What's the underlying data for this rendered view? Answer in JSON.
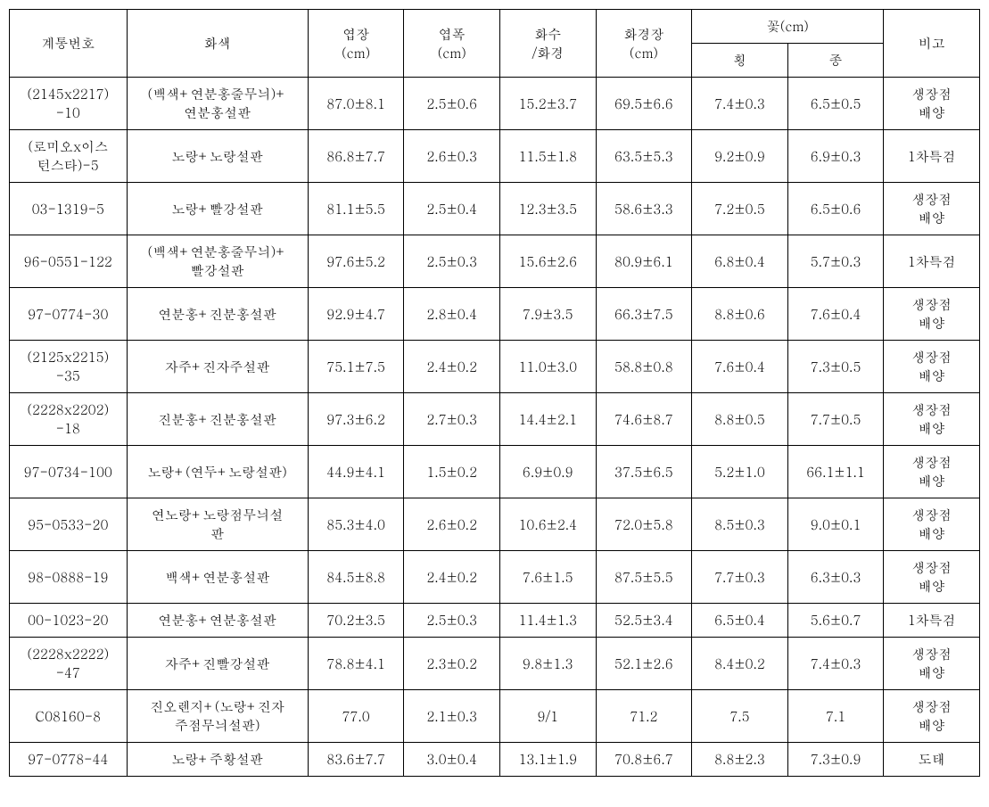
{
  "table": {
    "header": {
      "col1": "계통번호",
      "col2": "화색",
      "col3_line1": "엽장",
      "col3_line2": "(cm)",
      "col4_line1": "엽폭",
      "col4_line2": "(cm)",
      "col5_line1": "화수",
      "col5_line2": "/화경",
      "col6_line1": "화경장",
      "col6_line2": "(cm)",
      "col7": "꽃(cm)",
      "col7a": "횡",
      "col7b": "종",
      "col8": "비고"
    },
    "rows": [
      {
        "id_line1": "(2145x2217)",
        "id_line2": "-10",
        "color_line1": "(백색+연분홍줄무늬)+",
        "color_line2": "연분홍설판",
        "leaf_len": "87.0±8.1",
        "leaf_wid": "2.5±0.6",
        "flower_cnt": "15.2±3.7",
        "stalk": "69.5±6.6",
        "flower_h": "7.4±0.3",
        "flower_v": "6.5±0.5",
        "note_line1": "생장점",
        "note_line2": "배양"
      },
      {
        "id_line1": "(로미오x이스",
        "id_line2": "턴스타)-5",
        "color_line1": "노랑+노랑설판",
        "color_line2": "",
        "leaf_len": "86.8±7.7",
        "leaf_wid": "2.6±0.3",
        "flower_cnt": "11.5±1.8",
        "stalk": "63.5±5.3",
        "flower_h": "9.2±0.9",
        "flower_v": "6.9±0.3",
        "note_line1": "1차특검",
        "note_line2": ""
      },
      {
        "id_line1": "03-1319-5",
        "id_line2": "",
        "color_line1": "노랑+빨강설판",
        "color_line2": "",
        "leaf_len": "81.1±5.5",
        "leaf_wid": "2.5±0.4",
        "flower_cnt": "12.3±3.5",
        "stalk": "58.6±3.3",
        "flower_h": "7.2±0.5",
        "flower_v": "6.5±0.6",
        "note_line1": "생장점",
        "note_line2": "배양"
      },
      {
        "id_line1": "96-0551-122",
        "id_line2": "",
        "color_line1": "(백색+연분홍줄무늬)+",
        "color_line2": "빨강설판",
        "leaf_len": "97.6±5.2",
        "leaf_wid": "2.5±0.3",
        "flower_cnt": "15.6±2.6",
        "stalk": "80.9±6.1",
        "flower_h": "6.8±0.4",
        "flower_v": "5.7±0.3",
        "note_line1": "1차특검",
        "note_line2": ""
      },
      {
        "id_line1": "97-0774-30",
        "id_line2": "",
        "color_line1": "연분홍+진분홍설판",
        "color_line2": "",
        "leaf_len": "92.9±4.7",
        "leaf_wid": "2.8±0.4",
        "flower_cnt": "7.9±3.5",
        "stalk": "66.3±7.5",
        "flower_h": "8.8±0.6",
        "flower_v": "7.6±0.4",
        "note_line1": "생장점",
        "note_line2": "배양"
      },
      {
        "id_line1": "(2125x2215)",
        "id_line2": "-35",
        "color_line1": "자주+진자주설판",
        "color_line2": "",
        "leaf_len": "75.1±7.5",
        "leaf_wid": "2.4±0.2",
        "flower_cnt": "11.0±3.0",
        "stalk": "58.8±0.8",
        "flower_h": "7.6±0.4",
        "flower_v": "7.3±0.5",
        "note_line1": "생장점",
        "note_line2": "배양"
      },
      {
        "id_line1": "(2228x2202)",
        "id_line2": "-18",
        "color_line1": "진분홍+진분홍설판",
        "color_line2": "",
        "leaf_len": "97.3±6.2",
        "leaf_wid": "2.7±0.3",
        "flower_cnt": "14.4±2.1",
        "stalk": "74.6±8.7",
        "flower_h": "8.8±0.5",
        "flower_v": "7.7±0.5",
        "note_line1": "생장점",
        "note_line2": "배양"
      },
      {
        "id_line1": "97-0734-100",
        "id_line2": "",
        "color_line1": "노랑+(연두+노랑설판)",
        "color_line2": "",
        "leaf_len": "44.9±4.1",
        "leaf_wid": "1.5±0.2",
        "flower_cnt": "6.9±0.9",
        "stalk": "37.5±6.5",
        "flower_h": "5.2±1.0",
        "flower_v": "66.1±1.1",
        "note_line1": "생장점",
        "note_line2": "배양"
      },
      {
        "id_line1": "95-0533-20",
        "id_line2": "",
        "color_line1": "연노랑+노랑점무늬설",
        "color_line2": "판",
        "leaf_len": "85.3±4.0",
        "leaf_wid": "2.6±0.2",
        "flower_cnt": "10.6±2.4",
        "stalk": "72.0±5.8",
        "flower_h": "8.5±0.3",
        "flower_v": "9.0±0.1",
        "note_line1": "생장점",
        "note_line2": "배양"
      },
      {
        "id_line1": "98-0888-19",
        "id_line2": "",
        "color_line1": "백색+연분홍설판",
        "color_line2": "",
        "leaf_len": "84.5±8.8",
        "leaf_wid": "2.4±0.2",
        "flower_cnt": "7.6±1.5",
        "stalk": "87.5±5.5",
        "flower_h": "7.7±0.3",
        "flower_v": "6.3±0.3",
        "note_line1": "생장점",
        "note_line2": "배양"
      },
      {
        "id_line1": "00-1023-20",
        "id_line2": "",
        "color_line1": "연분홍+연분홍설판",
        "color_line2": "",
        "leaf_len": "70.2±3.5",
        "leaf_wid": "2.5±0.3",
        "flower_cnt": "11.4±1.3",
        "stalk": "52.5±3.4",
        "flower_h": "6.5±0.4",
        "flower_v": "5.6±0.7",
        "note_line1": "1차특검",
        "note_line2": ""
      },
      {
        "id_line1": "(2228x2222)",
        "id_line2": "-47",
        "color_line1": "자주+진빨강설판",
        "color_line2": "",
        "leaf_len": "78.8±4.1",
        "leaf_wid": "2.3±0.2",
        "flower_cnt": "9.8±1.3",
        "stalk": "52.1±2.6",
        "flower_h": "8.4±0.2",
        "flower_v": "7.4±0.3",
        "note_line1": "생장점",
        "note_line2": "배양"
      },
      {
        "id_line1": "C08160-8",
        "id_line2": "",
        "color_line1": "진오렌지+(노랑+진자",
        "color_line2": "주점무늬설판)",
        "leaf_len": "77.0",
        "leaf_wid": "2.1±0.3",
        "flower_cnt": "9/1",
        "stalk": "71.2",
        "flower_h": "7.5",
        "flower_v": "7.1",
        "note_line1": "생장점",
        "note_line2": "배양"
      },
      {
        "id_line1": "97-0778-44",
        "id_line2": "",
        "color_line1": "노랑+주황설판",
        "color_line2": "",
        "leaf_len": "83.6±7.7",
        "leaf_wid": "3.0±0.4",
        "flower_cnt": "13.1±1.9",
        "stalk": "70.8±6.7",
        "flower_h": "8.8±2.3",
        "flower_v": "7.3±0.9",
        "note_line1": "도태",
        "note_line2": ""
      }
    ],
    "styling": {
      "border_color": "#000000",
      "background_color": "#ffffff",
      "text_color": "#000000",
      "font_size": 15,
      "font_family": "Batang, serif",
      "cell_padding": 8
    }
  }
}
